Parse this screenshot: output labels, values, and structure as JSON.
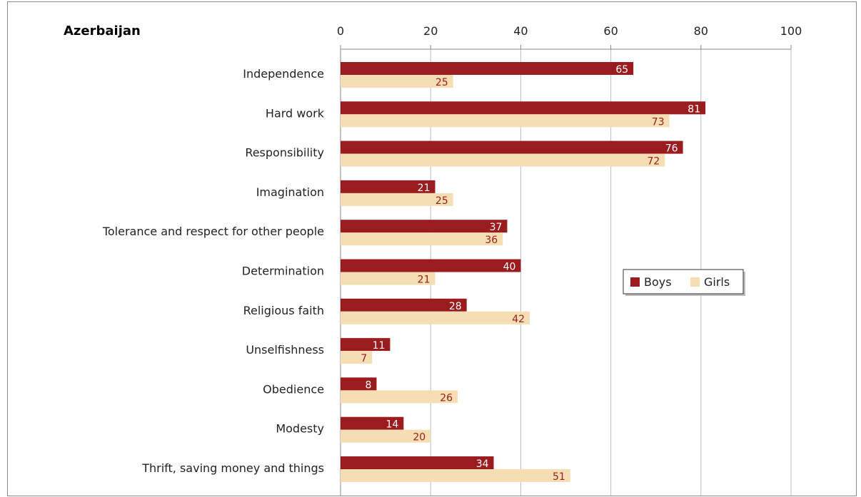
{
  "chart_data": {
    "type": "bar",
    "orientation": "horizontal",
    "title": "Azerbaijan",
    "categories": [
      "Independence",
      "Hard work",
      "Responsibility",
      "Imagination",
      "Tolerance and respect for other people",
      "Determination",
      "Religious faith",
      "Unselfishness",
      "Obedience",
      "Modesty",
      "Thrift, saving money and things"
    ],
    "series": [
      {
        "name": "Boys",
        "color": "#9b1c1f",
        "label_color": "#ffffff",
        "values": [
          65,
          81,
          76,
          21,
          37,
          40,
          28,
          11,
          8,
          14,
          34
        ]
      },
      {
        "name": "Girls",
        "color": "#f5deb3",
        "label_color": "#9b1c1f",
        "values": [
          25,
          73,
          72,
          25,
          36,
          21,
          42,
          7,
          26,
          20,
          51
        ]
      }
    ],
    "xlim": [
      0,
      100
    ],
    "xticks": [
      0,
      20,
      40,
      60,
      80,
      100
    ],
    "grid": true,
    "legend_position": "right-middle"
  }
}
